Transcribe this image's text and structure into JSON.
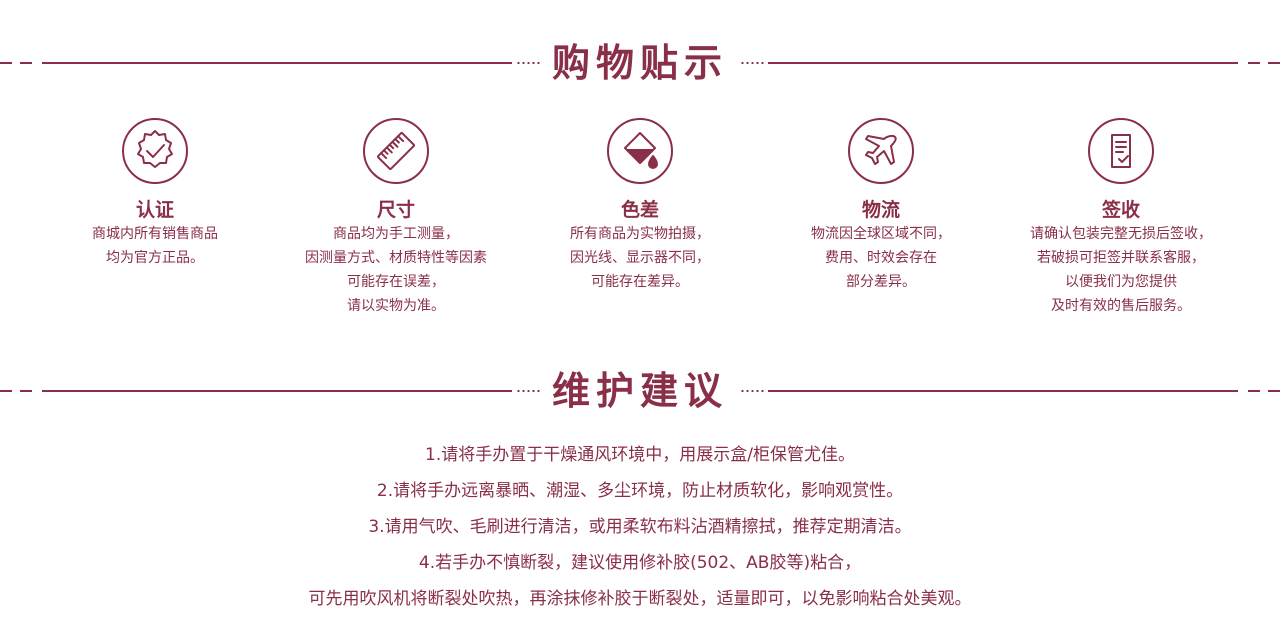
{
  "shopping_tips": {
    "title": "购物贴示",
    "items": [
      {
        "icon": "certified-badge-icon",
        "name": "认证",
        "lines": [
          "商城内所有销售商品",
          "均为官方正品。"
        ]
      },
      {
        "icon": "ruler-icon",
        "name": "尺寸",
        "lines": [
          "商品均为手工测量，",
          "因测量方式、材质特性等因素",
          "可能存在误差，",
          "请以实物为准。"
        ]
      },
      {
        "icon": "color-drop-icon",
        "name": "色差",
        "lines": [
          "所有商品为实物拍摄，",
          "因光线、显示器不同，",
          "可能存在差异。"
        ]
      },
      {
        "icon": "airplane-icon",
        "name": "物流",
        "lines": [
          "物流因全球区域不同，",
          "费用、时效会存在",
          "部分差异。"
        ]
      },
      {
        "icon": "sign-document-icon",
        "name": "签收",
        "lines": [
          "请确认包装完整无损后签收，",
          "若破损可拒签并联系客服，",
          "以便我们为您提供",
          "及时有效的售后服务。"
        ]
      }
    ]
  },
  "maintenance": {
    "title": "维护建议",
    "lines": [
      "1.请将手办置于干燥通风环境中，用展示盒/柜保管尤佳。",
      "2.请将手办远离暴晒、潮湿、多尘环境，防止材质软化，影响观赏性。",
      "3.请用气吹、毛刷进行清洁，或用柔软布料沾酒精擦拭，推荐定期清洁。",
      "4.若手办不慎断裂，建议使用修补胶(502、AB胶等)粘合，",
      "可先用吹风机将断裂处吹热，再涂抹修补胶于断裂处，适量即可，以免影响粘合处美观。"
    ]
  }
}
